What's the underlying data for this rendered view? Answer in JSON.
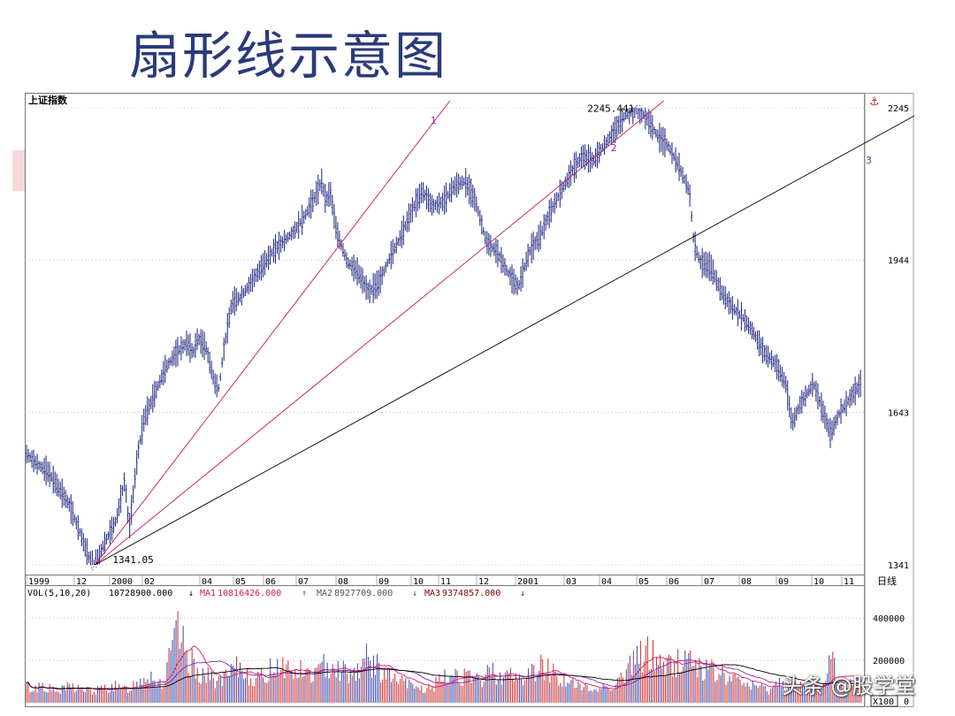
{
  "slide": {
    "title": "扇形线示意图",
    "watermark": "头条 @股学堂",
    "colors": {
      "title": "#2b3a7a",
      "candle": "#1a237e",
      "fan": "#c2185b",
      "trend": "#000000",
      "vol_red": "#d32f2f",
      "vol_blue": "#3949ab",
      "deco": "#f6d8d8"
    }
  },
  "chart_data": {
    "type": "candlestick",
    "title": "上证指数",
    "period_label": "日线",
    "price_ticks": [
      2245,
      1944,
      1643,
      1341
    ],
    "price_range": [
      1341,
      2245
    ],
    "x_labels": [
      "1999",
      "12",
      "2000",
      "02",
      "04",
      "05",
      "06",
      "07",
      "08",
      "09",
      "10",
      "11",
      "12",
      "2001",
      "03",
      "04",
      "05",
      "06",
      "07",
      "08",
      "09",
      "10",
      "11"
    ],
    "series": [
      {
        "name": "上证指数",
        "points": [
          [
            0,
            1560
          ],
          [
            0.05,
            1540
          ],
          [
            0.1,
            1525
          ],
          [
            0.14,
            1500
          ],
          [
            0.2,
            1460
          ],
          [
            0.25,
            1405
          ],
          [
            0.3,
            1345
          ],
          [
            0.32,
            1341.05
          ],
          [
            0.36,
            1380
          ],
          [
            0.42,
            1430
          ],
          [
            0.46,
            1510
          ],
          [
            0.48,
            1410
          ],
          [
            0.52,
            1560
          ],
          [
            0.55,
            1630
          ],
          [
            0.6,
            1680
          ],
          [
            0.65,
            1730
          ],
          [
            0.7,
            1760
          ],
          [
            0.75,
            1780
          ],
          [
            0.78,
            1760
          ],
          [
            0.8,
            1790
          ],
          [
            0.84,
            1770
          ],
          [
            0.88,
            1700
          ],
          [
            0.9,
            1690
          ],
          [
            0.92,
            1760
          ],
          [
            0.96,
            1860
          ],
          [
            1.0,
            1870
          ],
          [
            1.05,
            1900
          ],
          [
            1.1,
            1930
          ],
          [
            1.15,
            1960
          ],
          [
            1.2,
            1980
          ],
          [
            1.25,
            2000
          ],
          [
            1.3,
            2030
          ],
          [
            1.35,
            2070
          ],
          [
            1.38,
            2100
          ],
          [
            1.4,
            2060
          ],
          [
            1.42,
            2080
          ],
          [
            1.45,
            2000
          ],
          [
            1.5,
            1940
          ],
          [
            1.55,
            1920
          ],
          [
            1.6,
            1880
          ],
          [
            1.65,
            1900
          ],
          [
            1.7,
            1950
          ],
          [
            1.75,
            1990
          ],
          [
            1.8,
            2040
          ],
          [
            1.85,
            2080
          ],
          [
            1.9,
            2050
          ],
          [
            1.95,
            2060
          ],
          [
            2.0,
            2090
          ],
          [
            2.05,
            2100
          ],
          [
            2.1,
            2060
          ],
          [
            2.15,
            1980
          ],
          [
            2.2,
            1960
          ],
          [
            2.25,
            1920
          ],
          [
            2.28,
            1900
          ],
          [
            2.3,
            1890
          ],
          [
            2.35,
            1960
          ],
          [
            2.4,
            1990
          ],
          [
            2.45,
            2040
          ],
          [
            2.5,
            2080
          ],
          [
            2.55,
            2120
          ],
          [
            2.6,
            2150
          ],
          [
            2.65,
            2140
          ],
          [
            2.7,
            2170
          ],
          [
            2.75,
            2200
          ],
          [
            2.8,
            2230
          ],
          [
            2.85,
            2245.44
          ],
          [
            2.9,
            2225
          ],
          [
            2.95,
            2190
          ],
          [
            3.0,
            2170
          ],
          [
            3.05,
            2130
          ],
          [
            3.1,
            2080
          ],
          [
            3.12,
            1980
          ],
          [
            3.15,
            1940
          ],
          [
            3.2,
            1930
          ],
          [
            3.25,
            1880
          ],
          [
            3.3,
            1850
          ],
          [
            3.35,
            1830
          ],
          [
            3.4,
            1800
          ],
          [
            3.45,
            1760
          ],
          [
            3.5,
            1740
          ],
          [
            3.55,
            1700
          ],
          [
            3.58,
            1620
          ],
          [
            3.62,
            1660
          ],
          [
            3.68,
            1700
          ],
          [
            3.72,
            1650
          ],
          [
            3.76,
            1600
          ],
          [
            3.8,
            1640
          ],
          [
            3.85,
            1670
          ],
          [
            3.9,
            1700
          ]
        ]
      }
    ],
    "fan_lines": [
      {
        "name": "1",
        "from": [
          0.32,
          1341.05
        ],
        "to": [
          1.98,
          2245
        ]
      },
      {
        "name": "2",
        "from": [
          0.32,
          1341.05
        ],
        "to": [
          2.98,
          2245
        ]
      },
      {
        "name": "3",
        "from": [
          0.32,
          1341.05
        ],
        "to": [
          4.28,
          2245
        ]
      }
    ],
    "annotations": [
      {
        "text": "1341.05",
        "x": 0.32,
        "y": 1341.05
      },
      {
        "text": "2245.441",
        "x": 2.85,
        "y": 2245.44
      }
    ],
    "volume": {
      "header": "VOL(5,10,20)",
      "value": "10728900.000",
      "ma": [
        {
          "name": "MA1",
          "value": "10816426.000",
          "color": "#d81b60",
          "arrow": "↑"
        },
        {
          "name": "MA2",
          "value": "8927709.000",
          "color": "#555555",
          "arrow": "↓"
        },
        {
          "name": "MA3",
          "value": "9374857.000",
          "color": "#8b0000",
          "arrow": "↓"
        }
      ],
      "ticks": [
        400000,
        200000,
        0
      ],
      "ylim": [
        0,
        480000
      ],
      "values": [
        80000,
        60000,
        90000,
        70000,
        50000,
        60000,
        80000,
        70000,
        60000,
        50000,
        60000,
        70000,
        80000,
        60000,
        70000,
        90000,
        120000,
        140000,
        100000,
        90000,
        250000,
        330000,
        210000,
        180000,
        140000,
        120000,
        110000,
        100000,
        130000,
        160000,
        150000,
        120000,
        110000,
        130000,
        180000,
        190000,
        160000,
        140000,
        150000,
        130000,
        140000,
        170000,
        200000,
        160000,
        150000,
        140000,
        180000,
        210000,
        170000,
        150000,
        120000,
        110000,
        90000,
        80000,
        70000,
        60000,
        80000,
        100000,
        120000,
        140000,
        130000,
        110000,
        100000,
        120000,
        150000,
        140000,
        130000,
        120000,
        110000,
        130000,
        150000,
        170000,
        160000,
        130000,
        110000,
        90000,
        80000,
        70000,
        60000,
        70000,
        80000,
        90000,
        120000,
        160000,
        200000,
        240000,
        230000,
        200000,
        180000,
        170000,
        200000,
        210000,
        190000,
        170000,
        150000,
        140000,
        130000,
        110000,
        100000,
        90000,
        80000,
        70000,
        60000,
        80000,
        100000,
        90000,
        80000,
        70000,
        60000,
        80000,
        100000,
        240000,
        110000,
        90000,
        80000,
        70000
      ],
      "multiplier_label": "X100",
      "zero_label": "0"
    }
  }
}
